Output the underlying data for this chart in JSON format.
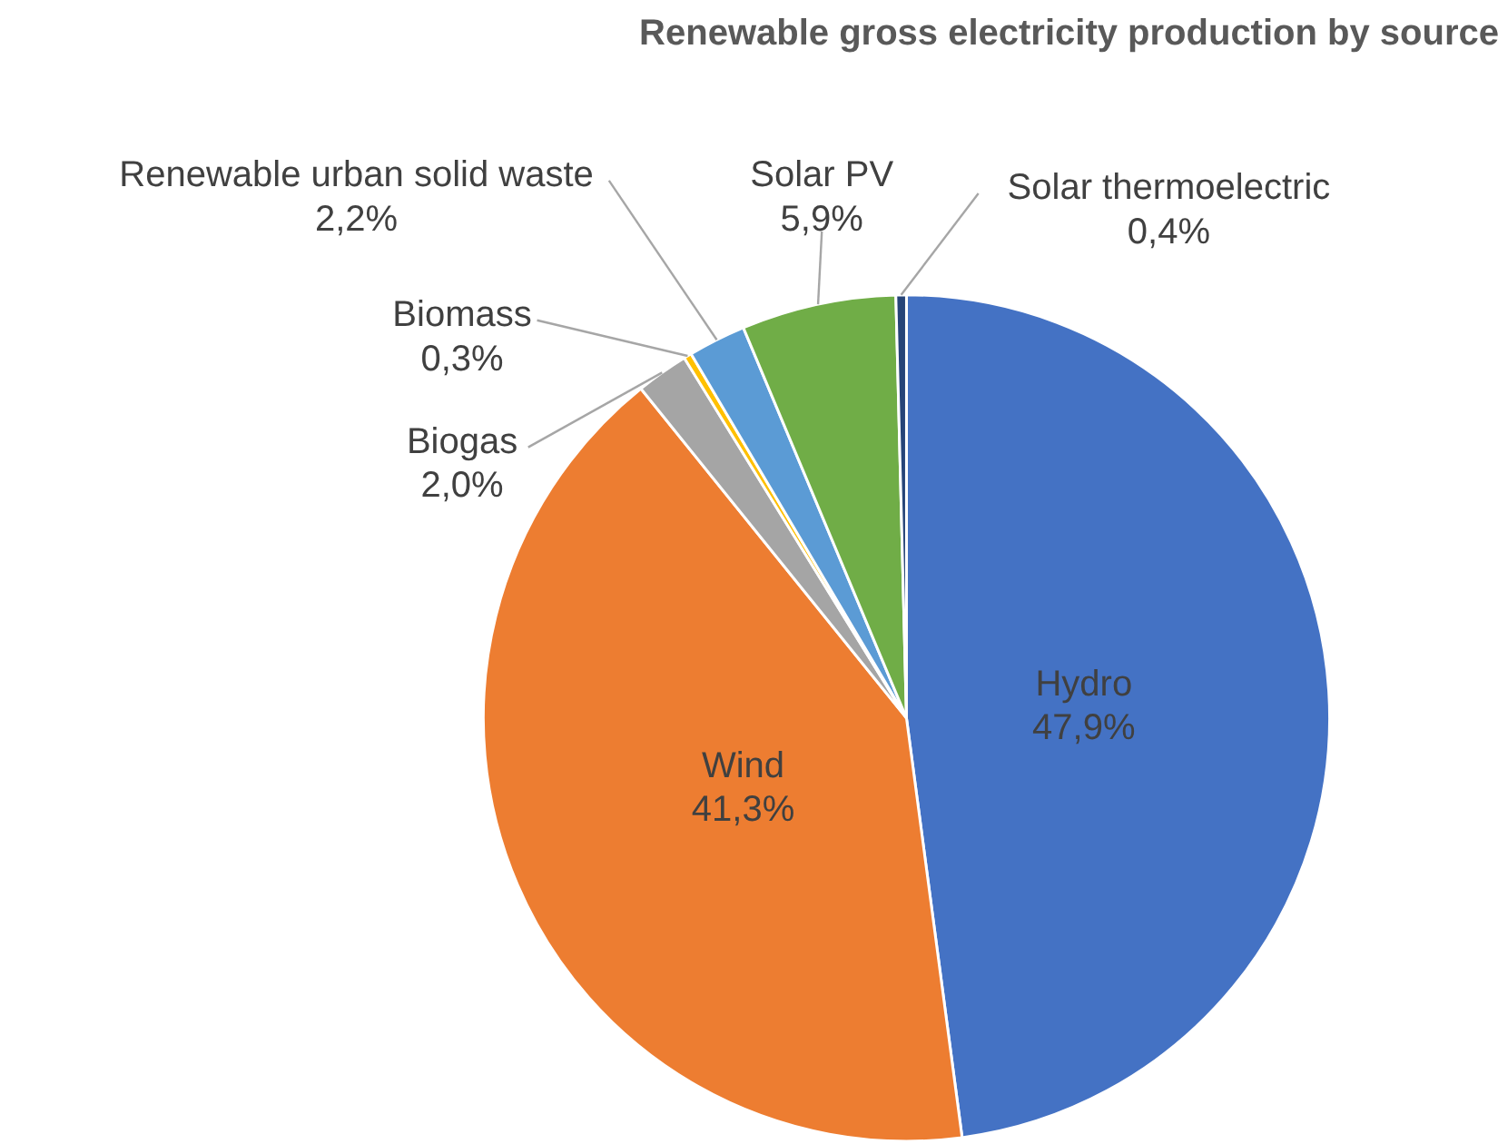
{
  "chart_data": {
    "type": "pie",
    "title": "Renewable gross electricity production by source",
    "categories": [
      "Hydro",
      "Wind",
      "Biogas",
      "Biomass",
      "Renewable urban solid waste",
      "Solar PV",
      "Solar thermoelectric"
    ],
    "values": [
      47.9,
      41.3,
      2.0,
      0.3,
      2.2,
      5.9,
      0.4
    ],
    "colors": [
      "#4472c4",
      "#ed7d31",
      "#a5a5a5",
      "#ffc000",
      "#5b9bd5",
      "#70ad47",
      "#264478"
    ],
    "value_labels": [
      "47,9%",
      "41,3%",
      "2,0%",
      "0,3%",
      "2,2%",
      "5,9%",
      "0,4%"
    ]
  }
}
